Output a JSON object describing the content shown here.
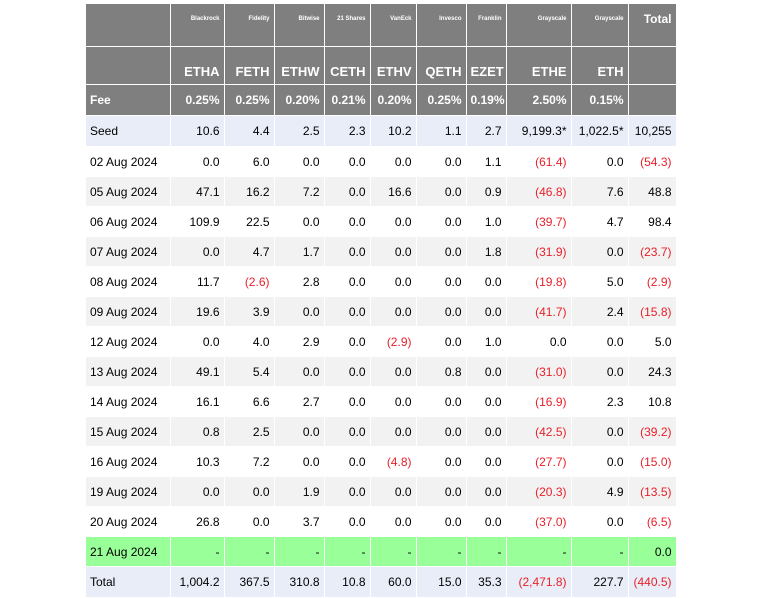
{
  "issuers": [
    "Blackrock",
    "Fidelity",
    "Bitwise",
    "21 Shares",
    "VanEck",
    "Invesco",
    "Franklin",
    "Grayscale",
    "Grayscale"
  ],
  "tickers": [
    "ETHA",
    "FETH",
    "ETHW",
    "CETH",
    "ETHV",
    "QETH",
    "EZET",
    "ETHE",
    "ETH"
  ],
  "total_header": "Total",
  "fee_label": "Fee",
  "fees": [
    "0.25%",
    "0.25%",
    "0.20%",
    "0.21%",
    "0.20%",
    "0.25%",
    "0.19%",
    "2.50%",
    "0.15%"
  ],
  "rows": [
    {
      "label": "Seed",
      "values": [
        "10.6",
        "4.4",
        "2.5",
        "2.3",
        "10.2",
        "1.1",
        "2.7",
        "9,199.3*",
        "1,022.5*",
        "10,255"
      ]
    },
    {
      "label": "02 Aug 2024",
      "values": [
        "0.0",
        "6.0",
        "0.0",
        "0.0",
        "0.0",
        "0.0",
        "1.1",
        "(61.4)",
        "0.0",
        "(54.3)"
      ]
    },
    {
      "label": "05 Aug 2024",
      "values": [
        "47.1",
        "16.2",
        "7.2",
        "0.0",
        "16.6",
        "0.0",
        "0.9",
        "(46.8)",
        "7.6",
        "48.8"
      ]
    },
    {
      "label": "06 Aug 2024",
      "values": [
        "109.9",
        "22.5",
        "0.0",
        "0.0",
        "0.0",
        "0.0",
        "1.0",
        "(39.7)",
        "4.7",
        "98.4"
      ]
    },
    {
      "label": "07 Aug 2024",
      "values": [
        "0.0",
        "4.7",
        "1.7",
        "0.0",
        "0.0",
        "0.0",
        "1.8",
        "(31.9)",
        "0.0",
        "(23.7)"
      ]
    },
    {
      "label": "08 Aug 2024",
      "values": [
        "11.7",
        "(2.6)",
        "2.8",
        "0.0",
        "0.0",
        "0.0",
        "0.0",
        "(19.8)",
        "5.0",
        "(2.9)"
      ]
    },
    {
      "label": "09 Aug 2024",
      "values": [
        "19.6",
        "3.9",
        "0.0",
        "0.0",
        "0.0",
        "0.0",
        "0.0",
        "(41.7)",
        "2.4",
        "(15.8)"
      ]
    },
    {
      "label": "12 Aug 2024",
      "values": [
        "0.0",
        "4.0",
        "2.9",
        "0.0",
        "(2.9)",
        "0.0",
        "1.0",
        "0.0",
        "0.0",
        "5.0"
      ]
    },
    {
      "label": "13 Aug 2024",
      "values": [
        "49.1",
        "5.4",
        "0.0",
        "0.0",
        "0.0",
        "0.8",
        "0.0",
        "(31.0)",
        "0.0",
        "24.3"
      ]
    },
    {
      "label": "14 Aug 2024",
      "values": [
        "16.1",
        "6.6",
        "2.7",
        "0.0",
        "0.0",
        "0.0",
        "0.0",
        "(16.9)",
        "2.3",
        "10.8"
      ]
    },
    {
      "label": "15 Aug 2024",
      "values": [
        "0.8",
        "2.5",
        "0.0",
        "0.0",
        "0.0",
        "0.0",
        "0.0",
        "(42.5)",
        "0.0",
        "(39.2)"
      ]
    },
    {
      "label": "16 Aug 2024",
      "values": [
        "10.3",
        "7.2",
        "0.0",
        "0.0",
        "(4.8)",
        "0.0",
        "0.0",
        "(27.7)",
        "0.0",
        "(15.0)"
      ]
    },
    {
      "label": "19 Aug 2024",
      "values": [
        "0.0",
        "0.0",
        "1.9",
        "0.0",
        "0.0",
        "0.0",
        "0.0",
        "(20.3)",
        "4.9",
        "(13.5)"
      ]
    },
    {
      "label": "20 Aug 2024",
      "values": [
        "26.8",
        "0.0",
        "3.7",
        "0.0",
        "0.0",
        "0.0",
        "0.0",
        "(37.0)",
        "0.0",
        "(6.5)"
      ]
    },
    {
      "label": "21 Aug 2024",
      "values": [
        "-",
        "-",
        "-",
        "-",
        "-",
        "-",
        "-",
        "-",
        "-",
        "0.0"
      ]
    },
    {
      "label": "Total",
      "values": [
        "1,004.2",
        "367.5",
        "310.8",
        "10.8",
        "60.0",
        "15.0",
        "35.3",
        "(2,471.8)",
        "227.7",
        "(440.5)"
      ]
    }
  ],
  "colors": {
    "header_bg": "#7f7f7f",
    "seed_bg": "#e8edf8",
    "stripe_bg": "#f2f2f2",
    "highlight_bg": "#99ff99",
    "negative": "#e8202a"
  }
}
